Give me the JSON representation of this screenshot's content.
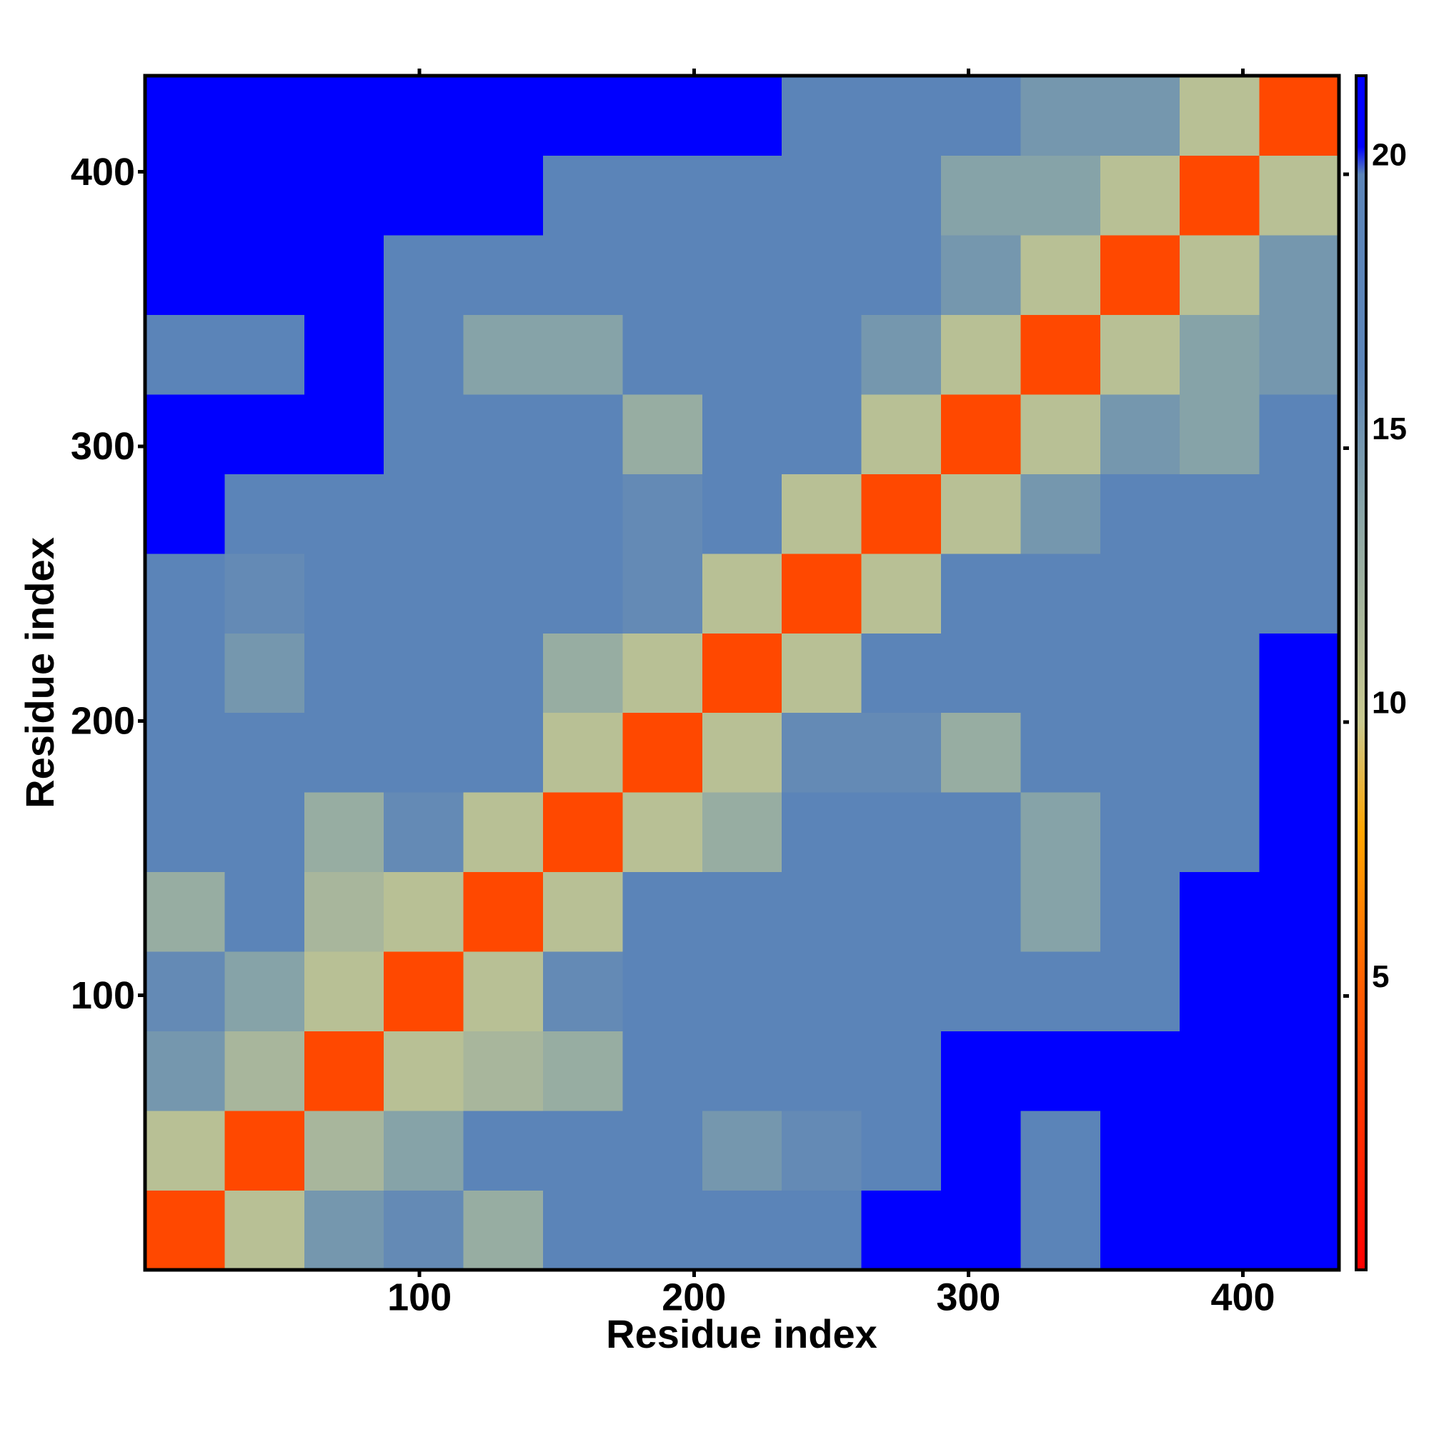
{
  "chart_data": {
    "type": "heatmap",
    "x_label": "Residue index",
    "y_label": "Residue index",
    "xlim": [
      0,
      435
    ],
    "ylim": [
      0,
      435
    ],
    "xticks": [
      100,
      200,
      300,
      400
    ],
    "yticks": [
      100,
      200,
      300,
      400
    ],
    "x_edges": [
      0,
      29,
      58,
      87,
      116,
      145,
      174,
      203,
      232,
      261,
      290,
      319,
      348,
      377,
      406,
      435
    ],
    "y_edges": [
      0,
      29,
      58,
      87,
      116,
      145,
      174,
      203,
      232,
      261,
      290,
      319,
      348,
      377,
      406,
      435
    ],
    "z": [
      [
        4,
        11,
        15,
        16,
        13,
        17,
        18,
        18,
        20,
        21,
        22,
        19,
        22,
        22,
        22
      ],
      [
        11,
        4,
        12,
        14,
        17,
        17,
        18,
        15,
        16,
        20,
        21,
        20,
        22,
        22,
        22
      ],
      [
        15,
        12,
        4,
        11,
        12,
        13,
        17,
        17,
        18,
        20,
        21,
        21,
        21,
        22,
        22
      ],
      [
        16,
        14,
        11,
        4,
        11,
        16,
        18,
        19,
        18,
        19,
        18,
        18,
        20,
        22,
        22
      ],
      [
        13,
        17,
        12,
        11,
        4,
        11,
        17,
        19,
        18,
        20,
        19,
        14,
        18,
        21,
        22
      ],
      [
        17,
        17,
        13,
        16,
        11,
        4,
        11,
        13,
        17,
        17,
        17,
        14,
        18,
        20,
        22
      ],
      [
        18,
        18,
        17,
        18,
        17,
        11,
        4,
        11,
        16,
        16,
        13,
        17,
        17,
        19,
        21
      ],
      [
        18,
        15,
        17,
        19,
        19,
        13,
        11,
        4,
        11,
        18,
        19,
        18,
        19,
        20,
        21
      ],
      [
        20,
        16,
        18,
        18,
        18,
        17,
        16,
        11,
        4,
        11,
        17,
        18,
        19,
        19,
        20
      ],
      [
        21,
        20,
        20,
        19,
        20,
        17,
        16,
        18,
        11,
        4,
        11,
        15,
        17,
        17,
        19
      ],
      [
        22,
        21,
        21,
        18,
        19,
        17,
        13,
        19,
        17,
        11,
        4,
        11,
        15,
        14,
        17
      ],
      [
        19,
        20,
        21,
        18,
        14,
        14,
        17,
        18,
        18,
        15,
        11,
        4,
        11,
        14,
        15
      ],
      [
        22,
        22,
        21,
        20,
        18,
        18,
        17,
        19,
        19,
        17,
        15,
        11,
        4,
        11,
        15
      ],
      [
        22,
        22,
        22,
        22,
        21,
        20,
        19,
        20,
        19,
        17,
        14,
        14,
        11,
        4,
        11
      ],
      [
        22,
        22,
        22,
        22,
        22,
        22,
        21,
        21,
        20,
        19,
        17,
        15,
        15,
        11,
        4
      ]
    ],
    "clim": [
      0,
      21.8
    ],
    "cticks": [
      5,
      10,
      15,
      20
    ],
    "colorscale": [
      [
        0,
        "#ff0000"
      ],
      [
        5,
        "#ff5a00"
      ],
      [
        8,
        "#ffa500"
      ],
      [
        10,
        "#c9c98f"
      ],
      [
        14,
        "#86a3a8"
      ],
      [
        16.5,
        "#5b84b8"
      ],
      [
        20,
        "#5b84b8"
      ],
      [
        20.5,
        "#0000ff"
      ],
      [
        21.8,
        "#0000ff"
      ]
    ]
  }
}
